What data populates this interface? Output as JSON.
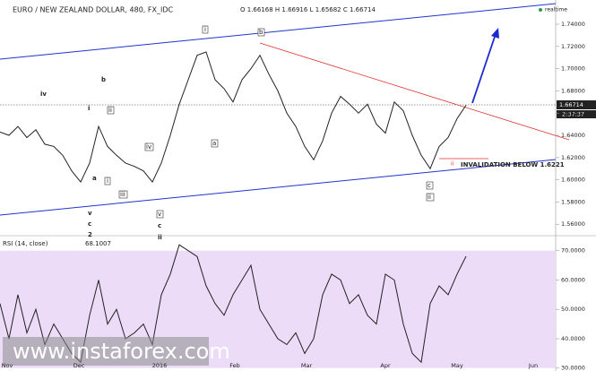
{
  "header": {
    "title": "EURO / NEW ZEALAND DOLLAR, 480, FX_IDC",
    "ohlc": "O 1.66168  H 1.66916  L 1.65682  C 1.66714",
    "realtime": "realtime",
    "clock": "2:37:37"
  },
  "chart_data": [
    {
      "type": "line",
      "name": "price",
      "values": [
        1.643,
        1.64,
        1.648,
        1.638,
        1.645,
        1.632,
        1.63,
        1.622,
        1.608,
        1.598,
        1.615,
        1.648,
        1.63,
        1.622,
        1.615,
        1.612,
        1.608,
        1.598,
        1.615,
        1.64,
        1.668,
        1.69,
        1.712,
        1.715,
        1.69,
        1.682,
        1.67,
        1.69,
        1.7,
        1.712,
        1.695,
        1.68,
        1.66,
        1.648,
        1.63,
        1.618,
        1.635,
        1.66,
        1.675,
        1.668,
        1.66,
        1.668,
        1.65,
        1.642,
        1.67,
        1.662,
        1.64,
        1.622,
        1.61,
        1.63,
        1.638,
        1.655,
        1.66714
      ],
      "color": "#222",
      "ylim": [
        1.5505,
        1.7618
      ],
      "yticks": [
        {
          "value": 1.56,
          "label": "1.56000"
        },
        {
          "value": 1.58,
          "label": "1.58000"
        },
        {
          "value": 1.6,
          "label": "1.60000"
        },
        {
          "value": 1.62,
          "label": "1.62000"
        },
        {
          "value": 1.64,
          "label": "1.64000"
        },
        {
          "value": 1.66,
          "label": "1.66000"
        },
        {
          "value": 1.68,
          "label": "1.68000"
        },
        {
          "value": 1.7,
          "label": "1.70000"
        },
        {
          "value": 1.72,
          "label": "1.72000"
        },
        {
          "value": 1.74,
          "label": "1.74000"
        }
      ],
      "annotations": [
        "iv",
        "b",
        "i",
        "a",
        "v",
        "c",
        "2",
        "i",
        "ii",
        "iii",
        "iv",
        "v",
        "c",
        "ii",
        "i",
        "a",
        "b",
        "c",
        "ii",
        "ii",
        "INVALIDATION BELOW 1.6221"
      ]
    },
    {
      "type": "line",
      "name": "RSI (14, close)",
      "values": [
        52,
        40,
        55,
        42,
        50,
        38,
        45,
        40,
        35,
        32,
        48,
        60,
        45,
        50,
        40,
        42,
        45,
        38,
        55,
        62,
        72,
        70,
        68,
        58,
        52,
        48,
        55,
        60,
        65,
        50,
        45,
        40,
        38,
        42,
        35,
        40,
        55,
        62,
        60,
        52,
        55,
        48,
        45,
        62,
        60,
        45,
        35,
        32,
        52,
        58,
        55,
        62,
        68.1007
      ],
      "color": "#222",
      "ylim": [
        29,
        74.5
      ],
      "yticks": [
        {
          "value": 30,
          "label": "30.0000"
        },
        {
          "value": 40,
          "label": "40.0000"
        },
        {
          "value": 50,
          "label": "50.0000"
        },
        {
          "value": 60,
          "label": "60.0000"
        },
        {
          "value": 70,
          "label": "70.0000"
        }
      ],
      "band": [
        30,
        70
      ]
    }
  ],
  "months": [
    "Nov",
    "Dec",
    "2016",
    "Feb",
    "Mar",
    "Apr",
    "May",
    "Jun"
  ],
  "watermark": "www.instaforex.com"
}
